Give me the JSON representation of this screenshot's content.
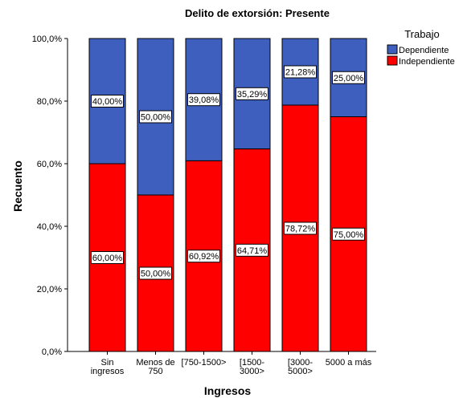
{
  "chart_data": {
    "type": "bar",
    "stacked": true,
    "title": "Delito de extorsión: Presente",
    "xlabel": "Ingresos",
    "ylabel": "Recuento",
    "ylim": [
      0,
      100
    ],
    "y_ticks": [
      "0,0%",
      "20,0%",
      "40,0%",
      "60,0%",
      "80,0%",
      "100,0%"
    ],
    "y_tick_values": [
      0,
      20,
      40,
      60,
      80,
      100
    ],
    "categories": [
      [
        "Sin",
        "ingresos"
      ],
      [
        "Menos de",
        "750"
      ],
      [
        "[750-1500>"
      ],
      [
        "[1500-",
        "3000>"
      ],
      [
        "[3000-",
        "5000>"
      ],
      [
        "5000 a más"
      ]
    ],
    "legend": {
      "title": "Trabajo",
      "position": "top-right"
    },
    "series": [
      {
        "name": "Independiente",
        "color": "#ff0000",
        "values": [
          60.0,
          50.0,
          60.92,
          64.71,
          78.72,
          75.0
        ],
        "labels": [
          "60,00%",
          "50,00%",
          "60,92%",
          "64,71%",
          "78,72%",
          "75,00%"
        ]
      },
      {
        "name": "Dependiente",
        "color": "#3f5fbf",
        "values": [
          40.0,
          50.0,
          39.08,
          35.29,
          21.28,
          25.0
        ],
        "labels": [
          "40,00%",
          "50,00%",
          "39,08%",
          "35,29%",
          "21,28%",
          "25,00%"
        ]
      }
    ],
    "legend_order": [
      "Dependiente",
      "Independiente"
    ],
    "grid": false
  }
}
